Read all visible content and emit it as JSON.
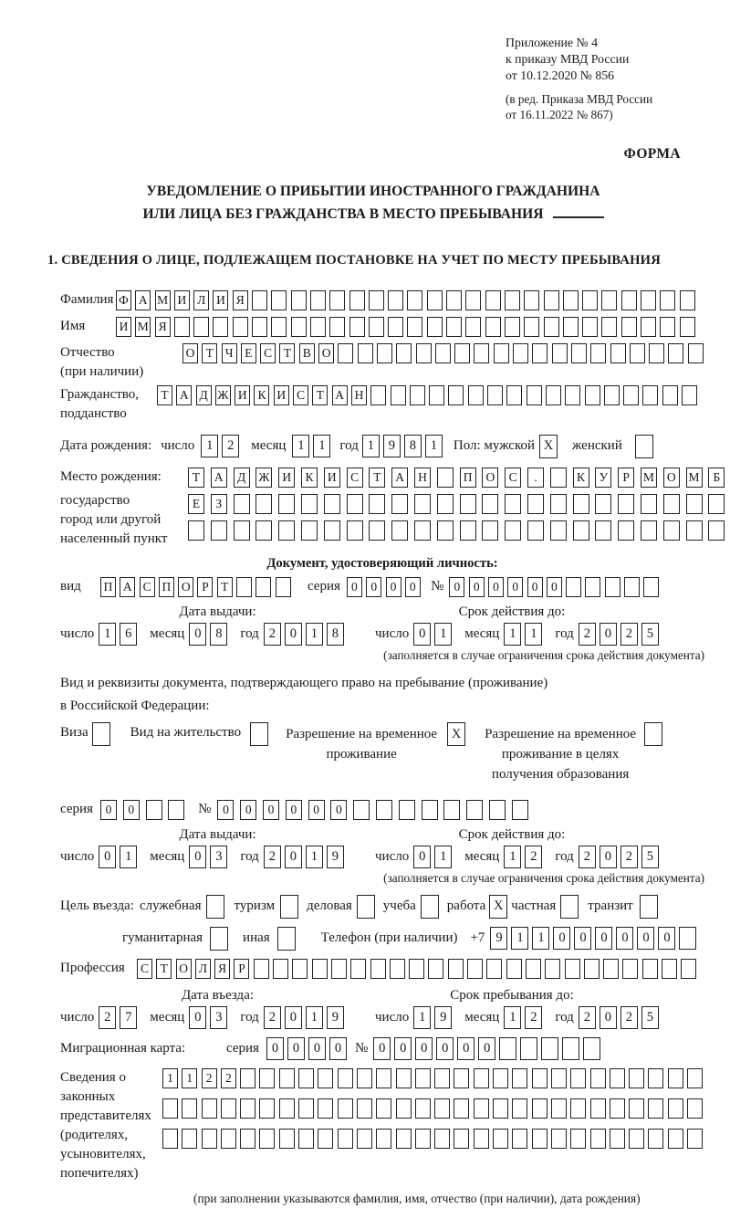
{
  "labels": {
    "day": "число",
    "month": "месяц",
    "year": "год",
    "series": "серия",
    "number": "№"
  },
  "header": {
    "line1": "Приложение № 4",
    "line2": "к приказу МВД России",
    "line3": "от 10.12.2020 № 856",
    "line4": "(в ред. Приказа МВД России",
    "line5": "от 16.11.2022 № 867)",
    "forma": "ФОРМА"
  },
  "title": {
    "line1": "УВЕДОМЛЕНИЕ О ПРИБЫТИИ ИНОСТРАННОГО ГРАЖДАНИНА",
    "line2": "ИЛИ ЛИЦА БЕЗ ГРАЖДАНСТВА В МЕСТО ПРЕБЫВАНИЯ"
  },
  "section1": {
    "title": "1. СВЕДЕНИЯ О ЛИЦЕ, ПОДЛЕЖАЩЕМ ПОСТАНОВКЕ НА УЧЕТ ПО МЕСТУ ПРЕБЫВАНИЯ",
    "surname": {
      "label": "Фамилия",
      "field": {
        "chars": "ФАМИЛИЯ",
        "total": 30
      }
    },
    "given_name": {
      "label": "Имя",
      "field": {
        "chars": "ИМЯ",
        "total": 30
      }
    },
    "patronymic": {
      "label1": "Отчество",
      "label2": "(при наличии)",
      "field": {
        "chars": "ОТЧЕСТВО",
        "total": 27
      }
    },
    "citizenship": {
      "label1": "Гражданство,",
      "label2": "подданство",
      "field": {
        "chars": "ТАДЖИКИСТАН",
        "total": 28
      }
    },
    "birth_date": {
      "label": "Дата рождения:",
      "day": "12",
      "month": "11",
      "year": "1981",
      "sex_label": "Пол: мужской",
      "male": true,
      "female_label": "женский",
      "female": false
    },
    "birth_place": {
      "label1": "Место рождения:",
      "label2": "государство",
      "label3": "город или другой",
      "label4": "населенный пункт",
      "row1": {
        "chars": "ТАДЖИКИСТАН ПОС. КУРМОМБ",
        "total": 24
      },
      "row2": {
        "chars": "ЕЗ",
        "total": 24
      },
      "row3": {
        "chars": "",
        "total": 24
      }
    },
    "identity_doc": {
      "heading": "Документ, удостоверяющий личность:",
      "kind_label": "вид",
      "kind": {
        "chars": "ПАСПОРТ",
        "total": 10
      },
      "series": {
        "chars": "0000",
        "total": 4
      },
      "number": {
        "chars": "000000",
        "total": 11
      },
      "issue_heading": "Дата выдачи:",
      "issue": {
        "day": "16",
        "month": "08",
        "year": "2018"
      },
      "valid_heading": "Срок действия до:",
      "valid": {
        "day": "01",
        "month": "11",
        "year": "2025"
      },
      "note": "(заполняется в случае ограничения срока действия документа)"
    },
    "residence_doc": {
      "intro1": "Вид и реквизиты документа, подтверждающего право на пребывание (проживание)",
      "intro2": "в Российской Федерации:",
      "options": [
        {
          "label": "Виза",
          "checked": false
        },
        {
          "label": "Вид на жительство",
          "checked": false
        },
        {
          "label": "Разрешение на временное проживание",
          "checked": true
        },
        {
          "label": "Разрешение на временное проживание в целях получения образования",
          "checked": false
        }
      ],
      "series": {
        "chars": "00",
        "total": 4
      },
      "number": {
        "chars": "000000",
        "total": 14
      },
      "issue_heading": "Дата выдачи:",
      "issue": {
        "day": "01",
        "month": "03",
        "year": "2019"
      },
      "valid_heading": "Срок действия до:",
      "valid": {
        "day": "01",
        "month": "12",
        "year": "2025"
      },
      "note": "(заполняется в случае ограничения срока действия документа)"
    },
    "visit": {
      "label": "Цель въезда:",
      "purposes": [
        {
          "label": "служебная",
          "checked": false
        },
        {
          "label": "туризм",
          "checked": false
        },
        {
          "label": "деловая",
          "checked": false
        },
        {
          "label": "учеба",
          "checked": false
        },
        {
          "label": "работа",
          "checked": true
        },
        {
          "label": "частная",
          "checked": false
        },
        {
          "label": "транзит",
          "checked": false
        },
        {
          "label": "гуманитарная",
          "checked": false
        },
        {
          "label": "иная",
          "checked": false
        }
      ],
      "phone_label": "Телефон (при наличии)",
      "phone_prefix": "+7",
      "phone": {
        "chars": "911000000",
        "total": 10
      }
    },
    "profession": {
      "label": "Профессия",
      "field": {
        "chars": "СТОЛЯР",
        "total": 29
      }
    },
    "entry": {
      "date_heading": "Дата въезда:",
      "date": {
        "day": "27",
        "month": "03",
        "year": "2019"
      },
      "stay_heading": "Срок пребывания до:",
      "stay": {
        "day": "19",
        "month": "12",
        "year": "2025"
      }
    },
    "migration_card": {
      "label": "Миграционная карта:",
      "series": {
        "chars": "0000",
        "total": 4
      },
      "number": {
        "chars": "000000",
        "total": 11
      }
    },
    "representatives": {
      "label1": "Сведения о",
      "label2": "законных",
      "label3": "представителях",
      "label4": "(родителях,",
      "label5": "усыновителях,",
      "label6": "попечителях)",
      "row1": {
        "chars": "1122",
        "total": 28
      },
      "row2": {
        "chars": "",
        "total": 28
      },
      "row3": {
        "chars": "",
        "total": 28
      },
      "note": "(при заполнении указываются фамилия, имя, отчество (при наличии), дата рождения)"
    }
  }
}
